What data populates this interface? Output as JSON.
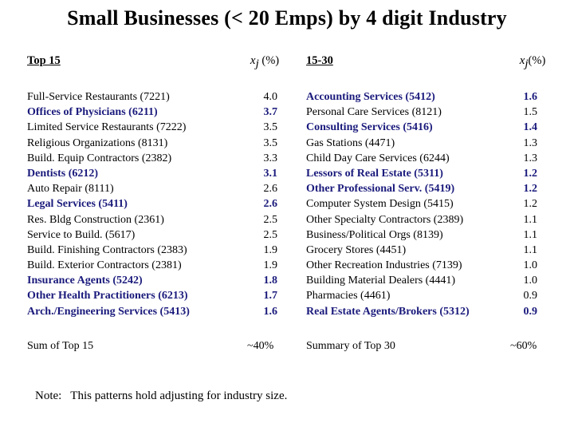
{
  "title": "Small Businesses (< 20 Emps) by 4 digit Industry",
  "left": {
    "header": "Top 15",
    "xj_symbol": "x",
    "xj_subscript": "j",
    "xj_unit": "(%)",
    "rows": [
      {
        "name": "Full-Service Restaurants (7221)",
        "value": "4.0",
        "highlight": false
      },
      {
        "name": "Offices of Physicians (6211)",
        "value": "3.7",
        "highlight": true
      },
      {
        "name": "Limited Service Restaurants (7222)",
        "value": "3.5",
        "highlight": false
      },
      {
        "name": "Religious Organizations (8131)",
        "value": "3.5",
        "highlight": false
      },
      {
        "name": "Build. Equip Contractors (2382)",
        "value": "3.3",
        "highlight": false
      },
      {
        "name": "Dentists (6212)",
        "value": "3.1",
        "highlight": true
      },
      {
        "name": "Auto Repair (8111)",
        "value": "2.6",
        "highlight": false
      },
      {
        "name": "Legal Services (5411)",
        "value": "2.6",
        "highlight": true
      },
      {
        "name": "Res. Bldg Construction (2361)",
        "value": "2.5",
        "highlight": false
      },
      {
        "name": "Service to Build. (5617)",
        "value": "2.5",
        "highlight": false
      },
      {
        "name": "Build. Finishing Contractors (2383)",
        "value": "1.9",
        "highlight": false
      },
      {
        "name": "Build. Exterior Contractors (2381)",
        "value": "1.9",
        "highlight": false
      },
      {
        "name": "Insurance Agents (5242)",
        "value": "1.8",
        "highlight": true
      },
      {
        "name": "Other Health Practitioners (6213)",
        "value": "1.7",
        "highlight": true
      },
      {
        "name": "Arch./Engineering Services (5413)",
        "value": "1.6",
        "highlight": true
      }
    ],
    "summary_label": "Sum of Top 15",
    "summary_value": "~40%"
  },
  "right": {
    "header": "15-30",
    "xj_symbol": "x",
    "xj_subscript": "j",
    "xj_unit": "(%)",
    "rows": [
      {
        "name": "Accounting Services (5412)",
        "value": "1.6",
        "highlight": true
      },
      {
        "name": "Personal Care Services (8121)",
        "value": "1.5",
        "highlight": false
      },
      {
        "name": "Consulting Services (5416)",
        "value": "1.4",
        "highlight": true
      },
      {
        "name": "Gas Stations (4471)",
        "value": "1.3",
        "highlight": false
      },
      {
        "name": "Child Day Care Services (6244)",
        "value": "1.3",
        "highlight": false
      },
      {
        "name": "Lessors of Real Estate (5311)",
        "value": "1.2",
        "highlight": true
      },
      {
        "name": "Other Professional Serv. (5419)",
        "value": "1.2",
        "highlight": true
      },
      {
        "name": "Computer System Design (5415)",
        "value": "1.2",
        "highlight": false
      },
      {
        "name": "Other Specialty Contractors (2389)",
        "value": "1.1",
        "highlight": false
      },
      {
        "name": "Business/Political Orgs (8139)",
        "value": "1.1",
        "highlight": false
      },
      {
        "name": "Grocery Stores (4451)",
        "value": "1.1",
        "highlight": false
      },
      {
        "name": "Other Recreation Industries (7139)",
        "value": "1.0",
        "highlight": false
      },
      {
        "name": "Building Material Dealers (4441)",
        "value": "1.0",
        "highlight": false
      },
      {
        "name": "Pharmacies (4461)",
        "value": "0.9",
        "highlight": false
      },
      {
        "name": "Real Estate Agents/Brokers (5312)",
        "value": "0.9",
        "highlight": true
      }
    ],
    "summary_label": "Summary of Top 30",
    "summary_value": "~60%"
  },
  "note": "Note:   This patterns hold adjusting for industry size."
}
